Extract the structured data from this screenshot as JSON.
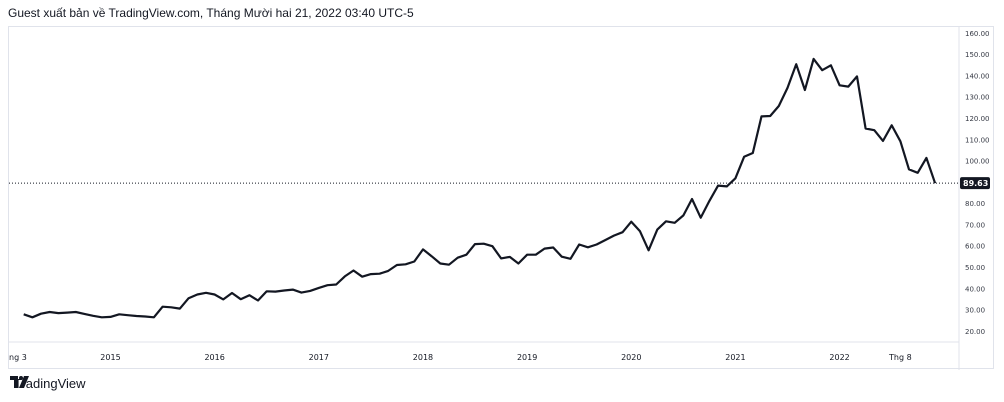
{
  "header": {
    "text": "Guest xuất bản về TradingView.com, Tháng Mười hai 21, 2022 03:40 UTC-5"
  },
  "footer": {
    "brand": "TradingView",
    "logo_icon": "tradingview-logo-icon"
  },
  "colors": {
    "line": "#131722",
    "last_price_label_bg": "#131722",
    "last_price_label_text": "#ffffff",
    "grid_border": "#e0e3eb"
  },
  "chart_data": {
    "type": "line",
    "title": "",
    "xlabel": "",
    "ylabel": "",
    "ylim": [
      15,
      163
    ],
    "y_ticks": [
      "20.00",
      "30.00",
      "40.00",
      "50.00",
      "60.00",
      "70.00",
      "80.00",
      "90.00",
      "100.00",
      "110.00",
      "120.00",
      "130.00",
      "140.00",
      "150.00",
      "160.00"
    ],
    "x_tick_labels": [
      {
        "label": "ng 3",
        "date": "2014-03"
      },
      {
        "label": "2015",
        "date": "2015-01"
      },
      {
        "label": "2016",
        "date": "2016-01"
      },
      {
        "label": "2017",
        "date": "2017-01"
      },
      {
        "label": "2018",
        "date": "2018-01"
      },
      {
        "label": "2019",
        "date": "2019-01"
      },
      {
        "label": "2020",
        "date": "2020-01"
      },
      {
        "label": "2021",
        "date": "2021-01"
      },
      {
        "label": "2022",
        "date": "2022-01"
      },
      {
        "label": "Thg 8",
        "date": "2022-08"
      }
    ],
    "last_price": {
      "value": 89.63,
      "label": "89.63"
    },
    "series": [
      {
        "x": [
          "2014-03",
          "2014-04",
          "2014-05",
          "2014-06",
          "2014-07",
          "2014-08",
          "2014-09",
          "2014-10",
          "2014-11",
          "2014-12",
          "2015-01",
          "2015-02",
          "2015-03",
          "2015-04",
          "2015-05",
          "2015-06",
          "2015-07",
          "2015-08",
          "2015-09",
          "2015-10",
          "2015-11",
          "2015-12",
          "2016-01",
          "2016-02",
          "2016-03",
          "2016-04",
          "2016-05",
          "2016-06",
          "2016-07",
          "2016-08",
          "2016-09",
          "2016-10",
          "2016-11",
          "2016-12",
          "2017-01",
          "2017-02",
          "2017-03",
          "2017-04",
          "2017-05",
          "2017-06",
          "2017-07",
          "2017-08",
          "2017-09",
          "2017-10",
          "2017-11",
          "2017-12",
          "2018-01",
          "2018-02",
          "2018-03",
          "2018-04",
          "2018-05",
          "2018-06",
          "2018-07",
          "2018-08",
          "2018-09",
          "2018-10",
          "2018-11",
          "2018-12",
          "2019-01",
          "2019-02",
          "2019-03",
          "2019-04",
          "2019-05",
          "2019-06",
          "2019-07",
          "2019-08",
          "2019-09",
          "2019-10",
          "2019-11",
          "2019-12",
          "2020-01",
          "2020-02",
          "2020-03",
          "2020-04",
          "2020-05",
          "2020-06",
          "2020-07",
          "2020-08",
          "2020-09",
          "2020-10",
          "2020-11",
          "2020-12",
          "2021-01",
          "2021-02",
          "2021-03",
          "2021-04",
          "2021-05",
          "2021-06",
          "2021-07",
          "2021-08",
          "2021-09",
          "2021-10",
          "2021-11",
          "2021-12",
          "2022-01",
          "2022-02",
          "2022-03",
          "2022-04",
          "2022-05",
          "2022-06",
          "2022-07",
          "2022-08",
          "2022-09",
          "2022-10",
          "2022-11",
          "2022-12"
        ],
        "values": [
          28.0,
          26.6,
          28.3,
          29.1,
          28.6,
          28.8,
          29.1,
          28.2,
          27.3,
          26.6,
          26.8,
          28.0,
          27.6,
          27.2,
          27.0,
          26.6,
          31.6,
          31.3,
          30.7,
          35.6,
          37.3,
          38.1,
          37.3,
          35.0,
          38.0,
          35.1,
          37.0,
          34.5,
          38.8,
          38.7,
          39.2,
          39.6,
          38.2,
          39.0,
          40.4,
          41.7,
          42.0,
          45.8,
          48.6,
          45.7,
          46.9,
          47.1,
          48.4,
          51.2,
          51.5,
          52.8,
          58.5,
          55.3,
          51.9,
          51.3,
          54.6,
          56.0,
          61.0,
          61.2,
          60.0,
          54.3,
          55.0,
          51.9,
          56.0,
          56.0,
          58.9,
          59.4,
          55.1,
          54.1,
          60.8,
          59.5,
          60.8,
          62.9,
          65.0,
          66.6,
          71.5,
          67.0,
          58.1,
          67.8,
          71.7,
          71.0,
          74.5,
          82.2,
          73.4,
          81.3,
          88.5,
          88.1,
          91.9,
          102.0,
          103.8,
          121.0,
          121.2,
          125.9,
          134.4,
          145.5,
          133.4,
          148.0,
          142.7,
          145.0,
          135.6,
          135.0,
          139.8,
          115.3,
          114.5,
          109.5,
          116.8,
          109.3,
          96.1,
          94.5,
          101.5,
          89.63
        ]
      }
    ]
  }
}
